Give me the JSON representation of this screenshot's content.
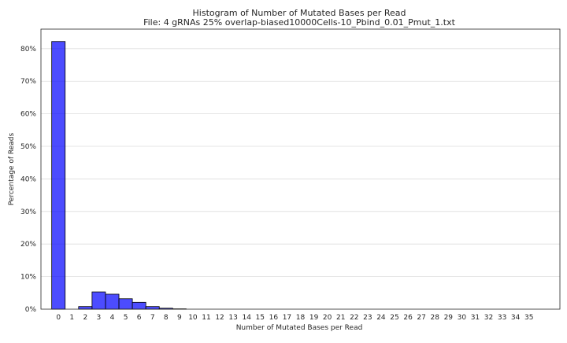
{
  "chart_data": {
    "type": "bar",
    "title": "Histogram of Number of Mutated Bases per Read",
    "subtitle": "File: 4 gRNAs 25% overlap-biased10000Cells-10_Pbind_0.01_Pmut_1.txt",
    "xlabel": "Number of Mutated Bases per Read",
    "ylabel": "Percentage of Reads",
    "categories": [
      "0",
      "1",
      "2",
      "3",
      "4",
      "5",
      "6",
      "7",
      "8",
      "9",
      "10",
      "11",
      "12",
      "13",
      "14",
      "15",
      "16",
      "17",
      "18",
      "19",
      "20",
      "21",
      "22",
      "23",
      "24",
      "25",
      "26",
      "27",
      "28",
      "29",
      "30",
      "31",
      "32",
      "33",
      "34",
      "35"
    ],
    "values": [
      82.2,
      0.0,
      0.8,
      5.3,
      4.6,
      3.2,
      2.1,
      0.8,
      0.3,
      0.1,
      0,
      0,
      0,
      0,
      0,
      0,
      0,
      0,
      0,
      0,
      0,
      0,
      0,
      0,
      0,
      0,
      0,
      0,
      0,
      0,
      0,
      0,
      0,
      0,
      0,
      0
    ],
    "yticks": [
      "0%",
      "10%",
      "20%",
      "30%",
      "40%",
      "50%",
      "60%",
      "70%",
      "80%"
    ],
    "ylim": [
      0,
      86
    ],
    "grid": "horizontal",
    "bar_color": "#0000ff",
    "bar_edge_color": "#000000"
  }
}
